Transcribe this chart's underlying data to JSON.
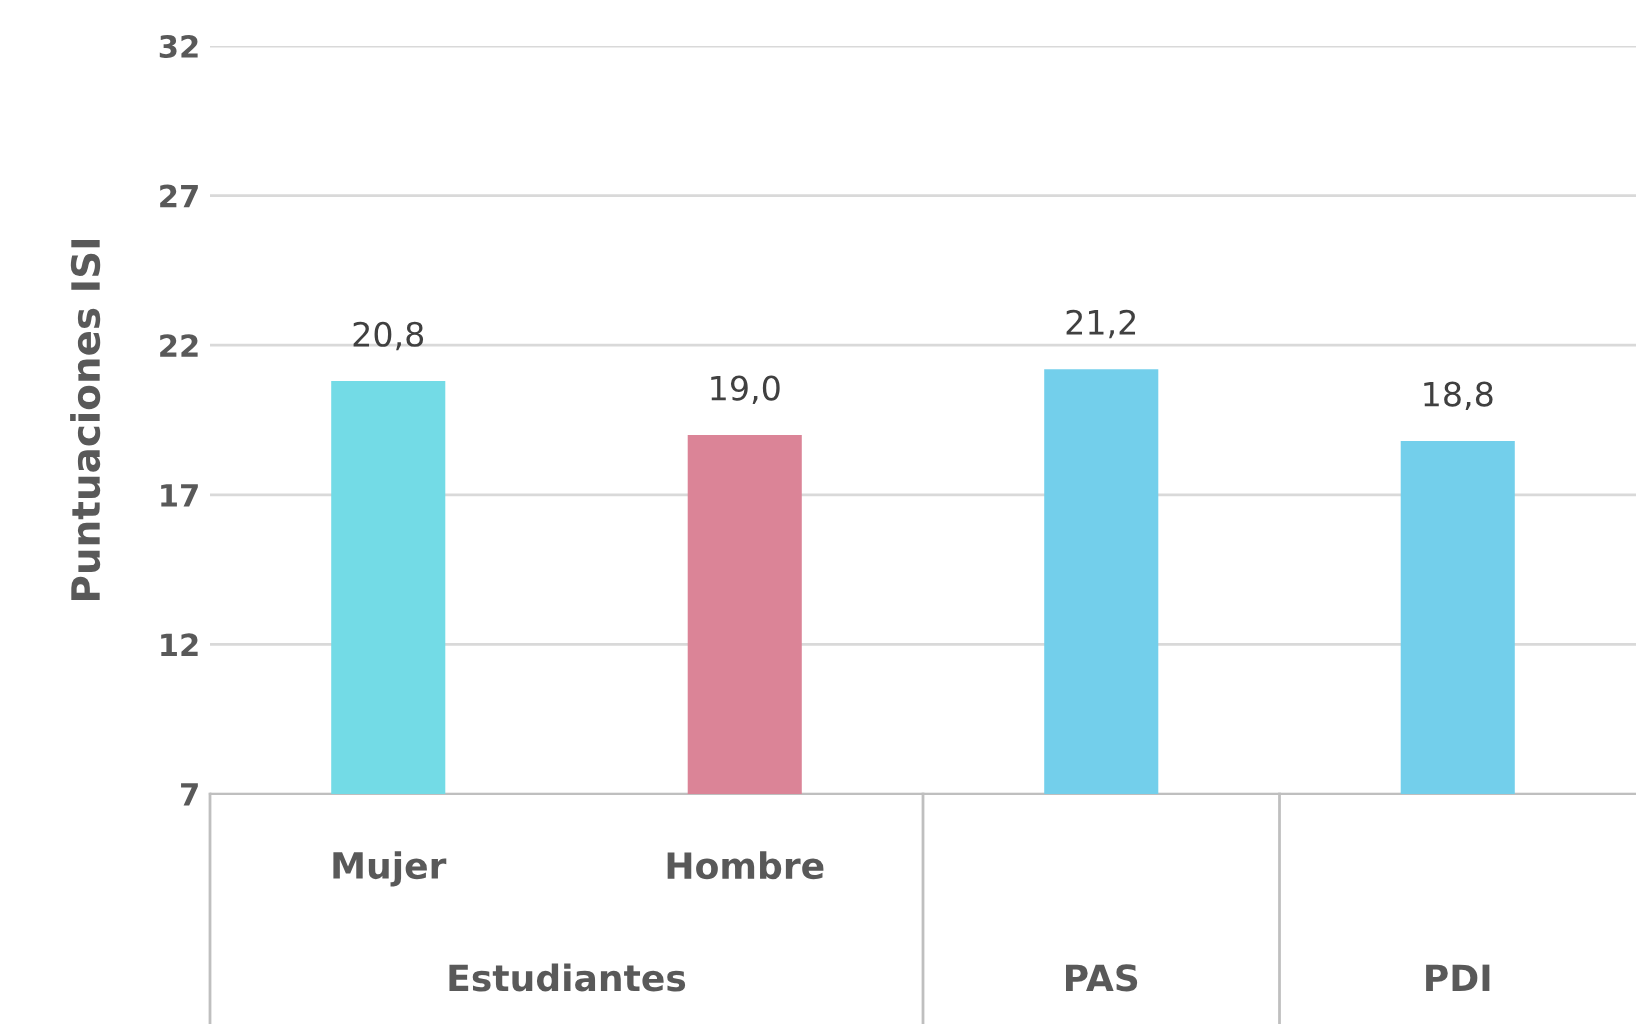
{
  "chart_data": {
    "type": "bar",
    "ylabel": "Puntuaciones ISI",
    "categories": [
      "Mujer",
      "Hombre",
      "PAS",
      "PDI"
    ],
    "values": [
      20.8,
      19.0,
      21.2,
      18.8
    ],
    "colors": [
      "#73dbe6",
      "#db8497",
      "#73cfeb",
      "#73cfeb"
    ],
    "value_labels": [
      "20,8",
      "19,0",
      "21,2",
      "18,8"
    ],
    "ylim": [
      7,
      32
    ],
    "yticks": [
      7,
      12,
      17,
      22,
      27,
      32
    ],
    "grid": "y",
    "annotations": [
      "Estudiantes"
    ]
  }
}
